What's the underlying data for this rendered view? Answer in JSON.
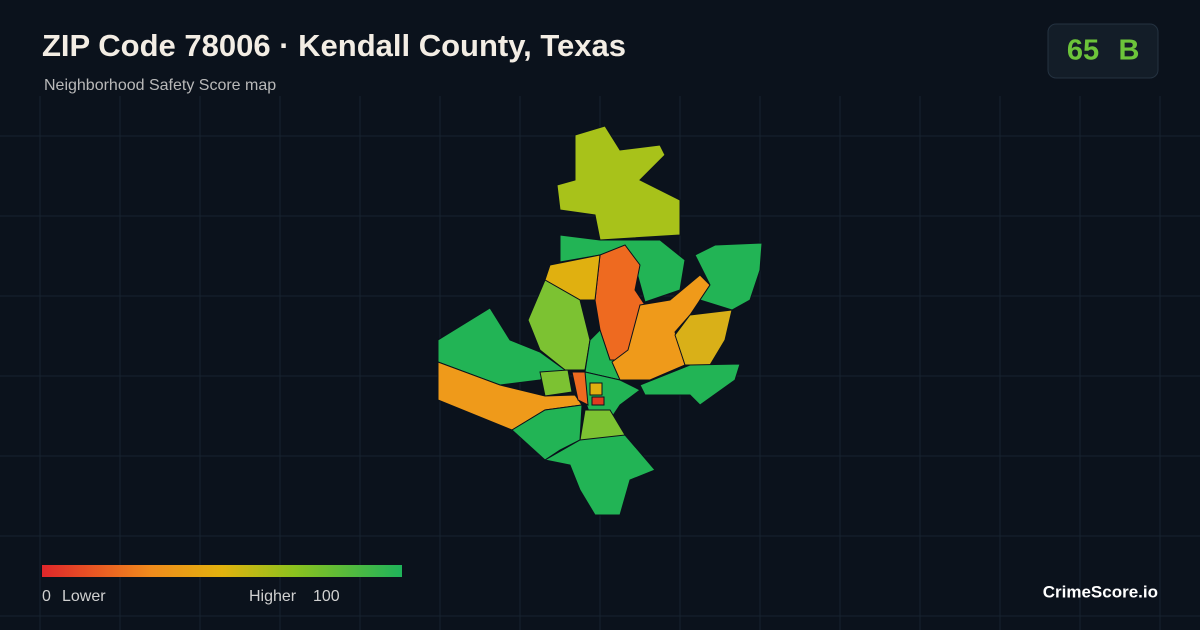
{
  "header": {
    "title": "ZIP Code 78006 · Kendall County, Texas",
    "subtitle": "Neighborhood Safety Score map"
  },
  "score": {
    "value": 65,
    "grade": "B"
  },
  "legend": {
    "min": 0,
    "min_label": "Lower",
    "max_label": "Higher",
    "max": 100
  },
  "footer": {
    "brand": "CrimeScore.io"
  }
}
